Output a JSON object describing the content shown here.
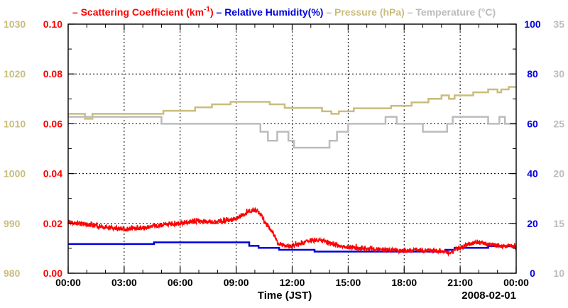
{
  "chart_data": {
    "type": "line",
    "legend": [
      {
        "key": "scatter",
        "prefix": "– ",
        "label": "Scattering Coefficient (km",
        "sup": "-1",
        "suffix": ")",
        "color": "#ff0000"
      },
      {
        "key": "rh",
        "prefix": "– ",
        "label": "Relative Humidity(%)",
        "color": "#0000dd"
      },
      {
        "key": "pressure",
        "prefix": "– ",
        "label": "Pressure (hPa)",
        "color": "#c9bd7d"
      },
      {
        "key": "temperature",
        "prefix": "– ",
        "label": "Temperature (°C)",
        "color": "#bcbcbc"
      }
    ],
    "xlabel": "Time (JST)",
    "date_label": "2008-02-01",
    "xlim": [
      0,
      24
    ],
    "x_ticks": [
      {
        "v": 0,
        "label": "00:00"
      },
      {
        "v": 3,
        "label": "03:00"
      },
      {
        "v": 6,
        "label": "06:00"
      },
      {
        "v": 9,
        "label": "09:00"
      },
      {
        "v": 12,
        "label": "12:00"
      },
      {
        "v": 15,
        "label": "15:00"
      },
      {
        "v": 18,
        "label": "18:00"
      },
      {
        "v": 21,
        "label": "21:00"
      },
      {
        "v": 24,
        "label": "00:00"
      }
    ],
    "axes": {
      "pressure": {
        "side": "left-outer",
        "color": "#c9bd7d",
        "lim": [
          980,
          1030
        ],
        "ticks": [
          980,
          990,
          1000,
          1010,
          1020,
          1030
        ],
        "labels": [
          "980",
          "990",
          "1000",
          "1010",
          "1020",
          "1030"
        ]
      },
      "scatter": {
        "side": "left",
        "color": "#ff0000",
        "lim": [
          0,
          0.1
        ],
        "ticks": [
          0,
          0.02,
          0.04,
          0.06,
          0.08,
          0.1
        ],
        "labels": [
          "0.00",
          "0.02",
          "0.04",
          "0.06",
          "0.08",
          "0.10"
        ]
      },
      "rh": {
        "side": "right",
        "color": "#0000dd",
        "lim": [
          0,
          100
        ],
        "ticks": [
          0,
          20,
          40,
          60,
          80,
          100
        ],
        "labels": [
          "0",
          "20",
          "40",
          "60",
          "80",
          "100"
        ]
      },
      "temperature": {
        "side": "right-outer",
        "color": "#bcbcbc",
        "lim": [
          10,
          35
        ],
        "ticks": [
          10,
          15,
          20,
          25,
          30,
          35
        ],
        "labels": [
          "10",
          "15",
          "20",
          "25",
          "30",
          "35"
        ]
      }
    },
    "grid": true,
    "series": [
      {
        "name": "Pressure (hPa)",
        "axis": "pressure",
        "style": "step",
        "points": [
          [
            0,
            1012
          ],
          [
            0.9,
            1012
          ],
          [
            0.9,
            1011
          ],
          [
            1.3,
            1011
          ],
          [
            1.3,
            1012
          ],
          [
            5.1,
            1012
          ],
          [
            5.1,
            1012.6
          ],
          [
            6.8,
            1012.6
          ],
          [
            6.8,
            1013.3
          ],
          [
            7.7,
            1013.3
          ],
          [
            7.7,
            1013.9
          ],
          [
            8.7,
            1013.9
          ],
          [
            8.7,
            1014.4
          ],
          [
            10.8,
            1014.4
          ],
          [
            10.8,
            1013.9
          ],
          [
            11.6,
            1013.9
          ],
          [
            11.6,
            1013.2
          ],
          [
            13.6,
            1013.2
          ],
          [
            13.6,
            1012.5
          ],
          [
            14.1,
            1012.5
          ],
          [
            14.1,
            1012
          ],
          [
            14.5,
            1012
          ],
          [
            14.5,
            1012.5
          ],
          [
            15.3,
            1012.5
          ],
          [
            15.3,
            1013.1
          ],
          [
            17.3,
            1013.1
          ],
          [
            17.3,
            1013.6
          ],
          [
            18.4,
            1013.6
          ],
          [
            18.4,
            1014.3
          ],
          [
            19.3,
            1014.3
          ],
          [
            19.3,
            1015
          ],
          [
            20,
            1015
          ],
          [
            20,
            1015.7
          ],
          [
            20.4,
            1015.7
          ],
          [
            20.4,
            1015
          ],
          [
            20.7,
            1015
          ],
          [
            20.7,
            1015.7
          ],
          [
            21.7,
            1015.7
          ],
          [
            21.7,
            1016.3
          ],
          [
            22.5,
            1016.3
          ],
          [
            22.5,
            1016.9
          ],
          [
            23,
            1016.9
          ],
          [
            23,
            1016.3
          ],
          [
            23.2,
            1016.3
          ],
          [
            23.2,
            1016.9
          ],
          [
            23.6,
            1016.9
          ],
          [
            23.6,
            1017.4
          ],
          [
            24,
            1017.4
          ]
        ]
      },
      {
        "name": "Temperature",
        "axis": "temperature",
        "style": "step",
        "points": [
          [
            0,
            25.7
          ],
          [
            5.0,
            25.7
          ],
          [
            5.0,
            25
          ],
          [
            10.3,
            25
          ],
          [
            10.3,
            24.2
          ],
          [
            10.7,
            24.2
          ],
          [
            10.7,
            23.3
          ],
          [
            11.2,
            23.3
          ],
          [
            11.2,
            24.2
          ],
          [
            11.8,
            24.2
          ],
          [
            11.8,
            23.3
          ],
          [
            12.1,
            23.3
          ],
          [
            12.1,
            22.6
          ],
          [
            14.0,
            22.6
          ],
          [
            14.0,
            23.3
          ],
          [
            14.4,
            23.3
          ],
          [
            14.4,
            24.2
          ],
          [
            15.0,
            24.2
          ],
          [
            15.0,
            25
          ],
          [
            17.0,
            25
          ],
          [
            17.0,
            25.7
          ],
          [
            17.6,
            25.7
          ],
          [
            17.6,
            25
          ],
          [
            19.0,
            25
          ],
          [
            19.0,
            24.2
          ],
          [
            20.3,
            24.2
          ],
          [
            20.3,
            25
          ],
          [
            20.6,
            25
          ],
          [
            20.6,
            25.7
          ],
          [
            22.5,
            25.7
          ],
          [
            22.5,
            25
          ],
          [
            23.1,
            25
          ],
          [
            23.1,
            25.7
          ],
          [
            23.4,
            25.7
          ],
          [
            23.4,
            25
          ],
          [
            24,
            25
          ]
        ]
      },
      {
        "name": "Relative Humidity(%)",
        "axis": "rh",
        "style": "step",
        "points": [
          [
            0,
            11.7
          ],
          [
            4.6,
            11.7
          ],
          [
            4.6,
            12.4
          ],
          [
            9.7,
            12.4
          ],
          [
            9.7,
            11
          ],
          [
            10.2,
            11
          ],
          [
            10.2,
            10.2
          ],
          [
            11.3,
            10.2
          ],
          [
            11.3,
            9.4
          ],
          [
            13.2,
            9.4
          ],
          [
            13.2,
            8.7
          ],
          [
            20.2,
            8.7
          ],
          [
            20.2,
            9.4
          ],
          [
            20.7,
            9.4
          ],
          [
            20.7,
            10.2
          ],
          [
            22.5,
            10.2
          ],
          [
            22.5,
            10.9
          ],
          [
            24,
            10.9
          ]
        ]
      },
      {
        "name": "Scattering Coefficient",
        "axis": "scatter",
        "style": "noisy",
        "noise": 0.0009,
        "spike_every": 9,
        "spike_scale": 0.0016,
        "samples": [
          [
            0,
            0.0205
          ],
          [
            1,
            0.0195
          ],
          [
            2,
            0.0185
          ],
          [
            3,
            0.0178
          ],
          [
            4,
            0.0182
          ],
          [
            5,
            0.0192
          ],
          [
            6,
            0.02
          ],
          [
            7,
            0.021
          ],
          [
            8,
            0.0205
          ],
          [
            9,
            0.0218
          ],
          [
            9.5,
            0.024
          ],
          [
            9.9,
            0.0255
          ],
          [
            10.3,
            0.024
          ],
          [
            10.6,
            0.02
          ],
          [
            10.9,
            0.017
          ],
          [
            11.2,
            0.0125
          ],
          [
            11.6,
            0.0108
          ],
          [
            12.2,
            0.0112
          ],
          [
            13.0,
            0.0132
          ],
          [
            13.7,
            0.013
          ],
          [
            14.3,
            0.0112
          ],
          [
            15,
            0.0103
          ],
          [
            16,
            0.0098
          ],
          [
            17,
            0.0093
          ],
          [
            18,
            0.009
          ],
          [
            19,
            0.0092
          ],
          [
            20,
            0.0088
          ],
          [
            20.4,
            0.0083
          ],
          [
            20.8,
            0.0095
          ],
          [
            21.3,
            0.0112
          ],
          [
            21.7,
            0.0122
          ],
          [
            22.2,
            0.012
          ],
          [
            23,
            0.011
          ],
          [
            24,
            0.0106
          ]
        ]
      }
    ]
  }
}
